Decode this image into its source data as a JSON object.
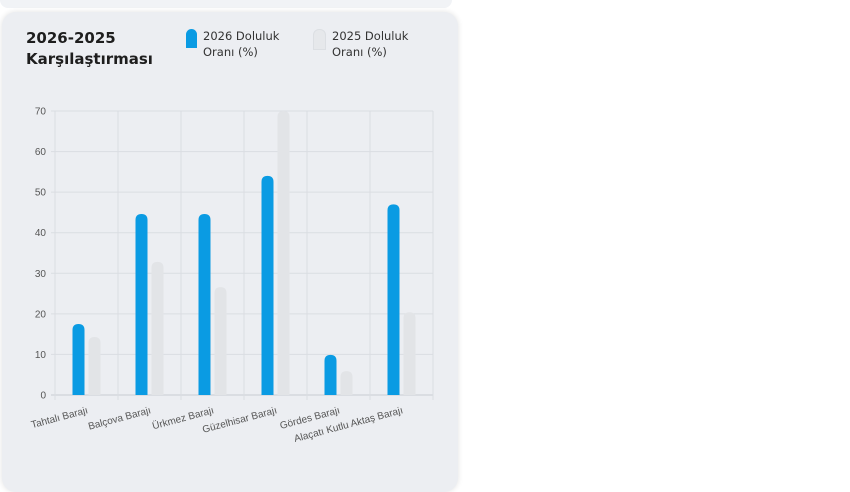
{
  "chart_data": {
    "type": "bar",
    "title": "2026-2025 Karşılaştırması",
    "xlabel": "",
    "ylabel": "",
    "ylim": [
      0,
      70
    ],
    "yticks": [
      0,
      10,
      20,
      30,
      40,
      50,
      60,
      70
    ],
    "grid": true,
    "legend_position": "top",
    "categories": [
      "Tahtalı Barajı",
      "Balçova Barajı",
      "Ürkmez Barajı",
      "Güzelhisar Barajı",
      "Gördes Barajı",
      "Alaçatı Kutlu Aktaş Barajı"
    ],
    "series": [
      {
        "name": "2026 Doluluk Oranı (%)",
        "color": "#0a9be3",
        "values": [
          17.5,
          44.6,
          44.6,
          54,
          9.9,
          47
        ]
      },
      {
        "name": "2025 Doluluk Oranı (%)",
        "color": "#e2e4e7",
        "values": [
          14.3,
          32.8,
          26.6,
          70,
          5.9,
          20.4
        ]
      }
    ]
  }
}
